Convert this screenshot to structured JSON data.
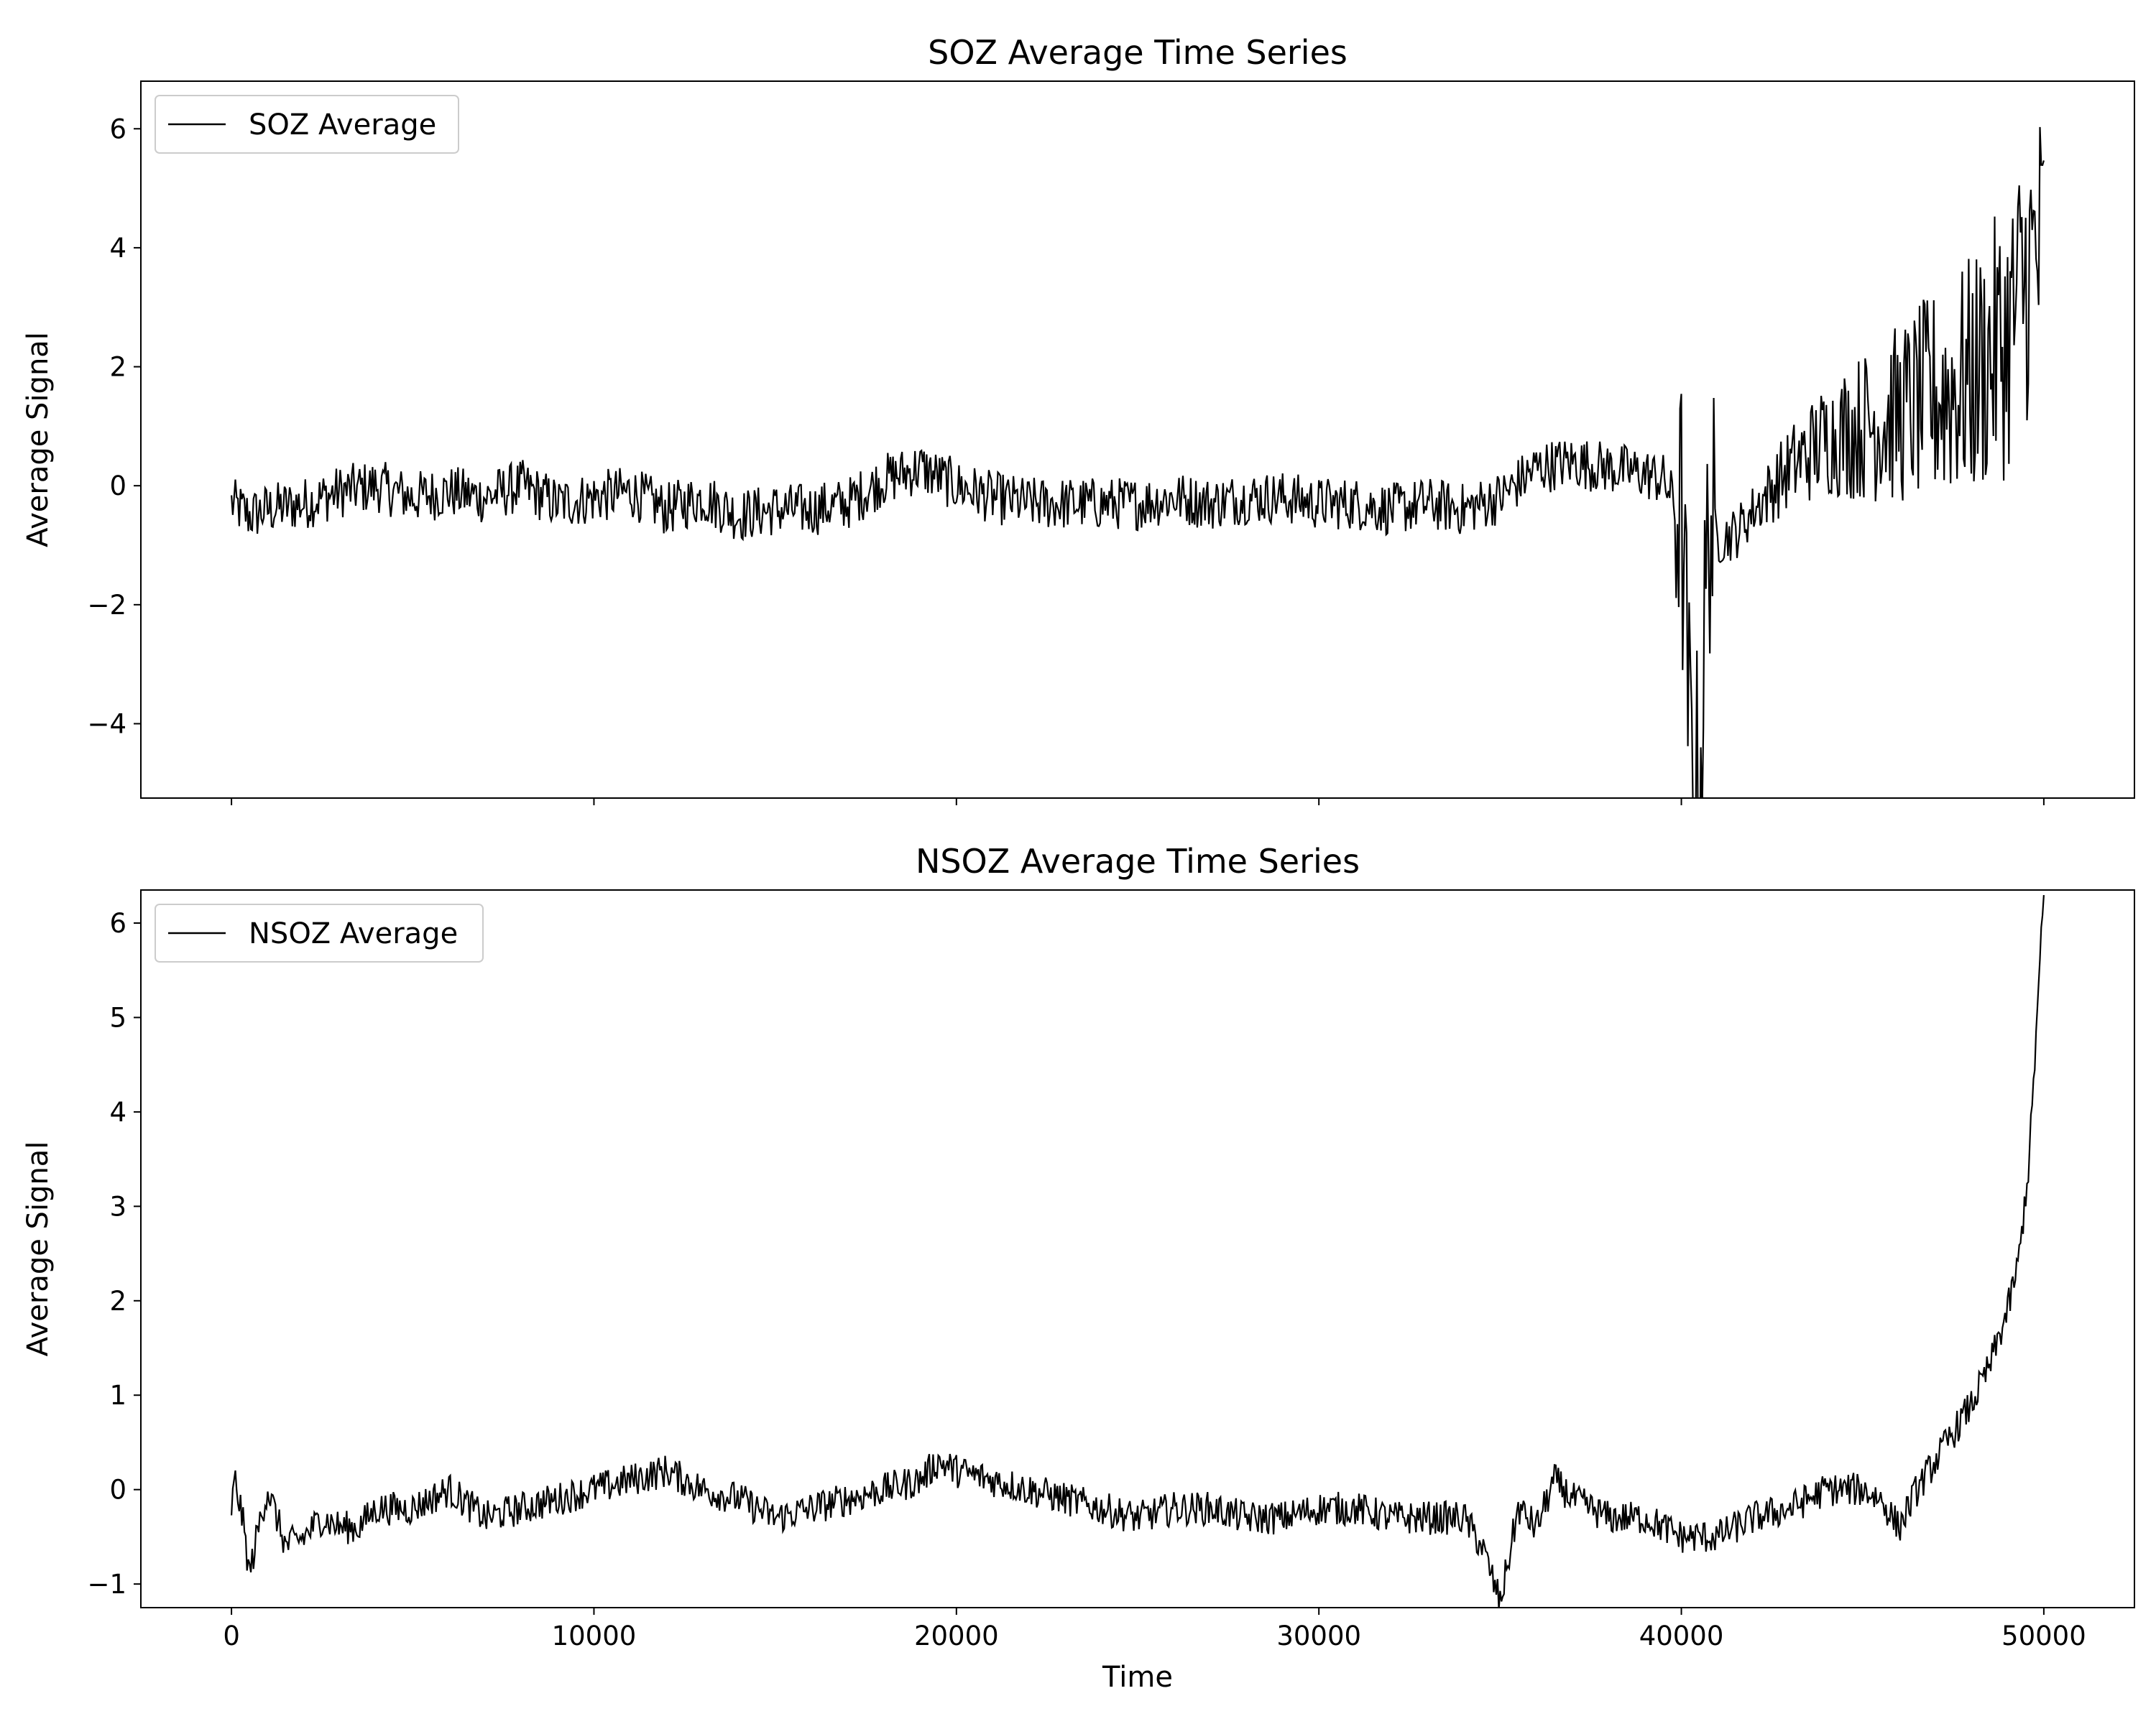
{
  "chart_data": [
    {
      "type": "line",
      "title": "SOZ Average Time Series",
      "xlabel": "",
      "ylabel": "Average Signal",
      "xlim": [
        -2500,
        52500
      ],
      "ylim": [
        -5.25,
        6.8
      ],
      "x_ticks": [
        0,
        10000,
        20000,
        30000,
        40000,
        50000
      ],
      "x_tick_labels_visible": false,
      "y_ticks": [
        -4,
        -2,
        0,
        2,
        4,
        6
      ],
      "y_tick_labels": [
        "−4",
        "−2",
        "0",
        "2",
        "4",
        "6"
      ],
      "grid": false,
      "legend": {
        "position": "top-left",
        "entries": [
          "SOZ Average"
        ]
      },
      "series": [
        {
          "name": "SOZ Average",
          "color": "#000000",
          "x": [
            0,
            500,
            1000,
            2000,
            3000,
            4000,
            5000,
            6000,
            7000,
            8000,
            9000,
            10000,
            11000,
            12000,
            13000,
            14000,
            15000,
            16000,
            17000,
            18000,
            19000,
            20000,
            21000,
            22000,
            23000,
            24000,
            25000,
            26000,
            27000,
            28000,
            29000,
            30000,
            31000,
            32000,
            33000,
            34000,
            35000,
            36000,
            37000,
            38000,
            39000,
            39500,
            40000,
            40250,
            40500,
            40750,
            41000,
            41500,
            42000,
            43000,
            44000,
            45000,
            46000,
            47000,
            48000,
            49000,
            49500,
            50000
          ],
          "values": [
            -0.3,
            -0.5,
            -0.4,
            -0.3,
            -0.1,
            0.0,
            -0.2,
            -0.1,
            -0.2,
            0.0,
            -0.3,
            -0.2,
            -0.1,
            -0.4,
            -0.2,
            -0.5,
            -0.4,
            -0.4,
            -0.3,
            0.1,
            0.3,
            0.0,
            -0.2,
            -0.3,
            -0.3,
            -0.3,
            -0.3,
            -0.2,
            -0.3,
            -0.2,
            -0.2,
            -0.3,
            -0.3,
            -0.4,
            -0.3,
            -0.4,
            -0.2,
            0.3,
            0.4,
            0.3,
            0.2,
            0.1,
            -0.5,
            -4.5,
            -5.2,
            -0.5,
            -0.9,
            -0.8,
            -0.4,
            0.3,
            0.8,
            1.0,
            1.2,
            1.5,
            1.8,
            2.5,
            3.5,
            4.0
          ]
        }
      ]
    },
    {
      "type": "line",
      "title": "NSOZ Average Time Series",
      "xlabel": "Time",
      "ylabel": "Average Signal",
      "xlim": [
        -2500,
        52500
      ],
      "ylim": [
        -1.25,
        6.35
      ],
      "x_ticks": [
        0,
        10000,
        20000,
        30000,
        40000,
        50000
      ],
      "x_tick_labels": [
        "0",
        "10000",
        "20000",
        "30000",
        "40000",
        "50000"
      ],
      "y_ticks": [
        -1,
        0,
        1,
        2,
        3,
        4,
        5,
        6
      ],
      "y_tick_labels": [
        "−1",
        "0",
        "1",
        "2",
        "3",
        "4",
        "5",
        "6"
      ],
      "grid": false,
      "legend": {
        "position": "top-left",
        "entries": [
          "NSOZ Average"
        ]
      },
      "series": [
        {
          "name": "NSOZ Average",
          "color": "#000000",
          "x": [
            0,
            100,
            300,
            500,
            800,
            1000,
            1500,
            2000,
            2500,
            3000,
            3500,
            4000,
            5000,
            6000,
            7000,
            8000,
            9000,
            10000,
            11000,
            12000,
            13000,
            14000,
            15000,
            16000,
            17000,
            18000,
            19000,
            19500,
            20000,
            21000,
            22000,
            23000,
            24000,
            25000,
            26000,
            27000,
            28000,
            29000,
            30000,
            31000,
            32000,
            33000,
            34000,
            34500,
            35000,
            35500,
            36000,
            36500,
            37000,
            38000,
            39000,
            40000,
            41000,
            42000,
            43000,
            44000,
            45000,
            45500,
            46000,
            46500,
            47000,
            47500,
            48000,
            48500,
            49000,
            49300,
            49600,
            50000
          ],
          "values": [
            -0.2,
            0.1,
            -0.3,
            -0.9,
            -0.3,
            0.0,
            -0.6,
            -0.5,
            -0.3,
            -0.4,
            -0.4,
            -0.2,
            -0.2,
            0.0,
            -0.3,
            -0.2,
            -0.1,
            0.0,
            0.1,
            0.2,
            0.0,
            -0.1,
            -0.3,
            -0.2,
            -0.1,
            0.0,
            0.1,
            0.3,
            0.2,
            0.1,
            0.0,
            -0.1,
            -0.2,
            -0.3,
            -0.2,
            -0.2,
            -0.3,
            -0.3,
            -0.2,
            -0.2,
            -0.3,
            -0.3,
            -0.3,
            -0.6,
            -1.2,
            -0.2,
            -0.4,
            0.1,
            -0.1,
            -0.3,
            -0.3,
            -0.5,
            -0.5,
            -0.3,
            -0.2,
            0.0,
            0.0,
            -0.1,
            -0.4,
            0.0,
            0.3,
            0.6,
            0.9,
            1.3,
            1.9,
            2.4,
            3.5,
            6.3
          ]
        }
      ]
    }
  ]
}
